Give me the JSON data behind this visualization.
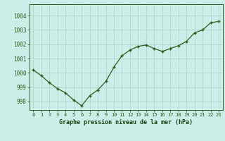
{
  "x": [
    0,
    1,
    2,
    3,
    4,
    5,
    6,
    7,
    8,
    9,
    10,
    11,
    12,
    13,
    14,
    15,
    16,
    17,
    18,
    19,
    20,
    21,
    22,
    23
  ],
  "y": [
    1000.2,
    999.8,
    999.3,
    998.9,
    998.6,
    998.1,
    997.7,
    998.4,
    998.8,
    999.4,
    1000.4,
    1001.2,
    1001.6,
    1001.85,
    1001.95,
    1001.7,
    1001.5,
    1001.7,
    1001.9,
    1002.2,
    1002.8,
    1003.0,
    1003.5,
    1003.6
  ],
  "line_color": "#2d5a1b",
  "marker": "+",
  "bg_color": "#cdeee8",
  "grid_color": "#aad8cc",
  "xlabel": "Graphe pression niveau de la mer (hPa)",
  "xlabel_color": "#1a4010",
  "tick_color": "#2d5a1b",
  "ylim_min": 997.4,
  "ylim_max": 1004.8,
  "yticks": [
    998,
    999,
    1000,
    1001,
    1002,
    1003,
    1004
  ],
  "xticks": [
    0,
    1,
    2,
    3,
    4,
    5,
    6,
    7,
    8,
    9,
    10,
    11,
    12,
    13,
    14,
    15,
    16,
    17,
    18,
    19,
    20,
    21,
    22,
    23
  ]
}
